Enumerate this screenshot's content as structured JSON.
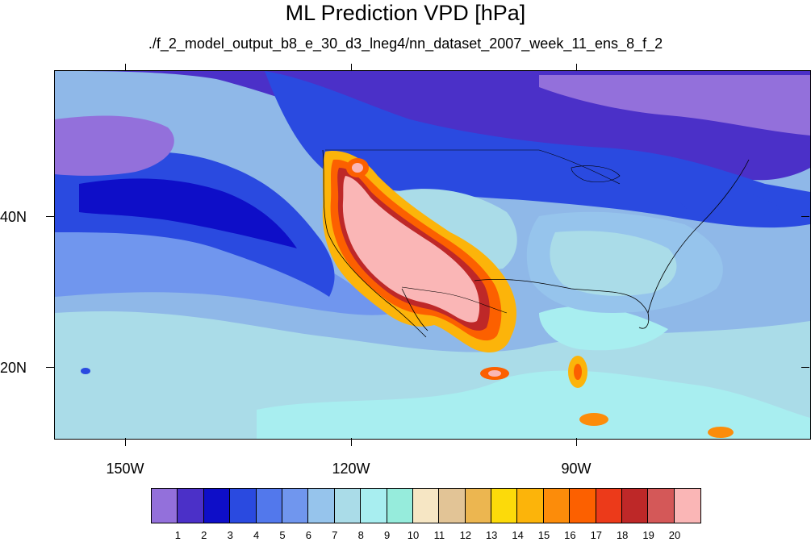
{
  "title": "ML Prediction VPD [hPa]",
  "subtitle": "./f_2_model_output_b8_e_30_d3_lneg4/nn_dataset_2007_week_11_ens_8_f_2",
  "map": {
    "lat_labels": [
      "40N",
      "20N"
    ],
    "lon_labels": [
      "150W",
      "120W",
      "90W"
    ]
  },
  "colorbar": {
    "colors": [
      "#9370db",
      "#4b30c8",
      "#0e0ec8",
      "#2a4ae0",
      "#5278ec",
      "#7096ee",
      "#96c4ec",
      "#aadce8",
      "#a8eef0",
      "#96ecdc",
      "#f6e6c4",
      "#e2c496",
      "#ecb650",
      "#fcda0a",
      "#fcb40a",
      "#fc8c0a",
      "#fc6000",
      "#ec3a1a",
      "#be2828",
      "#d45858",
      "#fab6b6"
    ],
    "labels": [
      "1",
      "2",
      "3",
      "4",
      "5",
      "6",
      "7",
      "8",
      "9",
      "10",
      "11",
      "12",
      "13",
      "14",
      "15",
      "16",
      "17",
      "18",
      "19",
      "20"
    ]
  }
}
